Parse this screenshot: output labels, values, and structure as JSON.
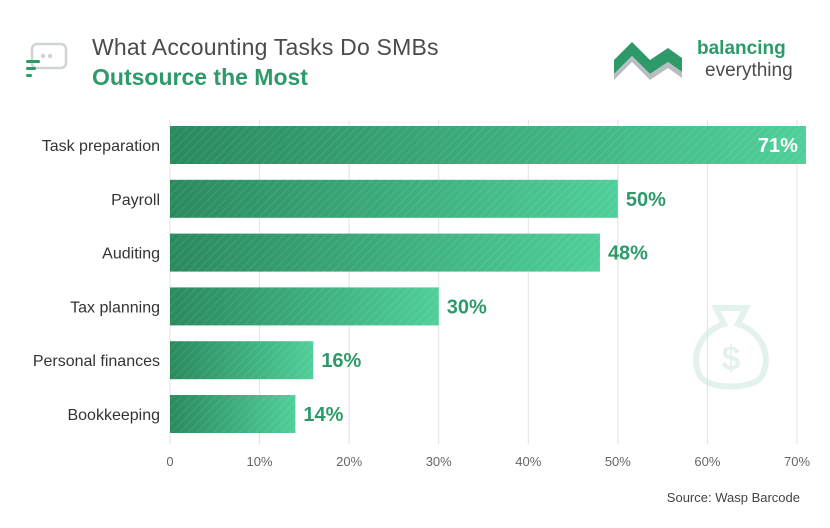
{
  "header": {
    "title_line1": "What Accounting Tasks Do SMBs",
    "title_line2": "Outsource the Most"
  },
  "logo": {
    "line1": "balancing",
    "line2": "everything"
  },
  "source": "Source: Wasp Barcode",
  "colors": {
    "bar_start": "#2a8a5e",
    "bar_end": "#4fcf99",
    "label": "#2e9a6a",
    "grid": "#e2e2e2"
  },
  "chart_data": {
    "type": "bar",
    "orientation": "horizontal",
    "title": "What Accounting Tasks Do SMBs Outsource the Most",
    "categories": [
      "Task preparation",
      "Payroll",
      "Auditing",
      "Tax planning",
      "Personal finances",
      "Bookkeeping"
    ],
    "values": [
      71,
      50,
      48,
      30,
      16,
      14
    ],
    "value_labels": [
      "71%",
      "50%",
      "48%",
      "30%",
      "16%",
      "14%"
    ],
    "xlim": [
      0,
      70
    ],
    "x_ticks": [
      "0",
      "10%",
      "20%",
      "30%",
      "40%",
      "50%",
      "60%",
      "70%"
    ],
    "x_tick_values": [
      0,
      10,
      20,
      30,
      40,
      50,
      60,
      70
    ],
    "grid": true,
    "xlabel": "",
    "ylabel": ""
  }
}
